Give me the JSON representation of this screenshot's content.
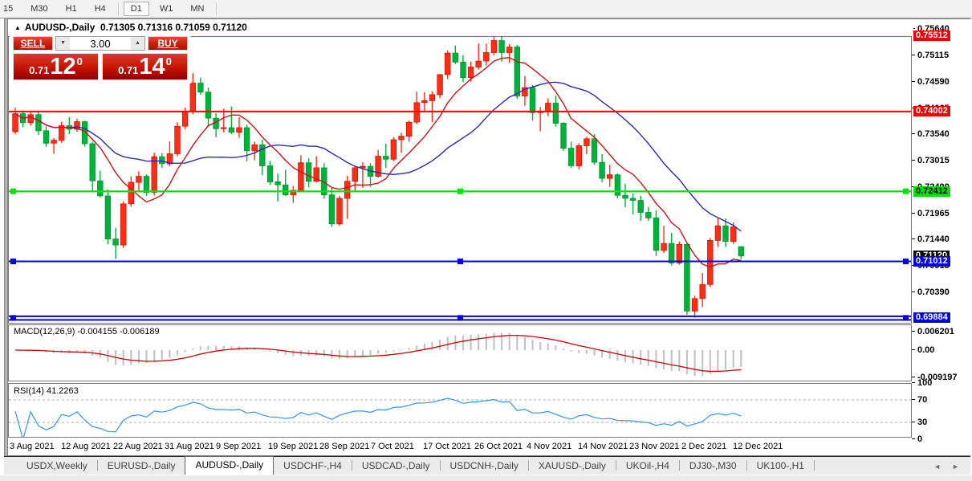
{
  "toolbar": {
    "timeframes": [
      {
        "label": "15",
        "active": false
      },
      {
        "label": "M30",
        "active": false
      },
      {
        "label": "H1",
        "active": false
      },
      {
        "label": "H4",
        "active": false
      },
      {
        "label": "D1",
        "active": true
      },
      {
        "label": "W1",
        "active": false
      },
      {
        "label": "MN",
        "active": false
      }
    ]
  },
  "chart": {
    "collapse_arrow": "▲",
    "symbol": "AUDUSD-,Daily",
    "ohlc": "0.71305 0.71316 0.71059 0.71120"
  },
  "trade": {
    "sell_label": "SELL",
    "buy_label": "BUY",
    "volume": "3.00",
    "bid": {
      "prefix": "0.71",
      "big": "12",
      "sup": "0"
    },
    "ask": {
      "prefix": "0.71",
      "big": "14",
      "sup": "0"
    }
  },
  "chart_data": {
    "type": "candlestick",
    "symbol": "AUDUSD",
    "timeframe": "Daily",
    "up_color": "#ff2e17",
    "up_border": "#e00f00",
    "down_color": "#00b23c",
    "down_border": "#009a2e",
    "ma_fast_color": "#cc1414",
    "ma_slow_color": "#2a2ab0",
    "price_axis_ticks": [
      "0.75640",
      "0.75115",
      "0.74590",
      "0.74065",
      "0.73540",
      "0.73015",
      "0.72490",
      "0.71965",
      "0.71440",
      "0.70915",
      "0.70390"
    ],
    "axis_badges": [
      {
        "value": "0.75512",
        "bg": "#f00000",
        "fg": "#ffffff"
      },
      {
        "value": "0.74002",
        "bg": "#f00000",
        "fg": "#ffffff"
      },
      {
        "value": "0.72412",
        "bg": "#00e000",
        "fg": "#000000"
      },
      {
        "value": "0.71120",
        "bg": "#000000",
        "fg": "#ffffff"
      },
      {
        "value": "0.71012",
        "bg": "#0000e0",
        "fg": "#ffffff"
      },
      {
        "value": "0.69884",
        "bg": "#0000e0",
        "fg": "#ffffff"
      }
    ],
    "levels": [
      {
        "price": 0.75512,
        "color": "#ff0000",
        "style": "solid",
        "handles": false
      },
      {
        "price": 0.74002,
        "color": "#ff0000",
        "style": "solid",
        "handles": false
      },
      {
        "price": 0.72412,
        "color": "#00e400",
        "style": "solid",
        "handles": true
      },
      {
        "price": 0.71012,
        "color": "#0000e0",
        "style": "solid",
        "handles": true
      },
      {
        "price": 0.69884,
        "color": "#0000e0",
        "style": "double",
        "handles": true
      }
    ],
    "x_labels": [
      "3 Aug 2021",
      "12 Aug 2021",
      "22 Aug 2021",
      "31 Aug 2021",
      "9 Sep 2021",
      "19 Sep 2021",
      "28 Sep 2021",
      "7 Oct 2021",
      "17 Oct 2021",
      "26 Oct 2021",
      "4 Nov 2021",
      "14 Nov 2021",
      "23 Nov 2021",
      "2 Dec 2021",
      "12 Dec 2021"
    ],
    "candles": [
      [
        0.736,
        0.7408,
        0.7355,
        0.7396
      ],
      [
        0.7396,
        0.7402,
        0.7369,
        0.7378
      ],
      [
        0.7378,
        0.7399,
        0.7372,
        0.7394
      ],
      [
        0.7394,
        0.74,
        0.7354,
        0.7362
      ],
      [
        0.7362,
        0.7371,
        0.733,
        0.7337
      ],
      [
        0.7337,
        0.7347,
        0.7316,
        0.7343
      ],
      [
        0.7343,
        0.738,
        0.7338,
        0.7372
      ],
      [
        0.7372,
        0.7389,
        0.7355,
        0.7365
      ],
      [
        0.7365,
        0.7386,
        0.736,
        0.738
      ],
      [
        0.738,
        0.7382,
        0.733,
        0.7336
      ],
      [
        0.7336,
        0.734,
        0.724,
        0.7262
      ],
      [
        0.7262,
        0.7282,
        0.7229,
        0.7232
      ],
      [
        0.7232,
        0.7245,
        0.7135,
        0.7146
      ],
      [
        0.7146,
        0.7168,
        0.7106,
        0.7134
      ],
      [
        0.7134,
        0.7221,
        0.7128,
        0.7216
      ],
      [
        0.7216,
        0.7271,
        0.721,
        0.7259
      ],
      [
        0.7259,
        0.7281,
        0.724,
        0.7271
      ],
      [
        0.7271,
        0.7275,
        0.7232,
        0.7239
      ],
      [
        0.7239,
        0.7318,
        0.7233,
        0.731
      ],
      [
        0.731,
        0.7317,
        0.7288,
        0.7296
      ],
      [
        0.7296,
        0.7341,
        0.7291,
        0.7316
      ],
      [
        0.7316,
        0.7379,
        0.7311,
        0.7371
      ],
      [
        0.7371,
        0.7408,
        0.7365,
        0.74
      ],
      [
        0.74,
        0.7477,
        0.7395,
        0.7457
      ],
      [
        0.7457,
        0.7468,
        0.7434,
        0.7439
      ],
      [
        0.7439,
        0.7448,
        0.737,
        0.7387
      ],
      [
        0.7387,
        0.7397,
        0.7349,
        0.7366
      ],
      [
        0.7366,
        0.7406,
        0.7359,
        0.7368
      ],
      [
        0.7368,
        0.741,
        0.7355,
        0.7359
      ],
      [
        0.7359,
        0.7389,
        0.7348,
        0.7368
      ],
      [
        0.7368,
        0.7374,
        0.7301,
        0.7322
      ],
      [
        0.7322,
        0.734,
        0.7303,
        0.7334
      ],
      [
        0.7334,
        0.7344,
        0.7273,
        0.7292
      ],
      [
        0.7292,
        0.7302,
        0.7254,
        0.726
      ],
      [
        0.726,
        0.7276,
        0.7221,
        0.7254
      ],
      [
        0.7254,
        0.7284,
        0.7232,
        0.7234
      ],
      [
        0.7234,
        0.7252,
        0.7218,
        0.7243
      ],
      [
        0.7243,
        0.7313,
        0.724,
        0.7298
      ],
      [
        0.7298,
        0.7307,
        0.7249,
        0.7261
      ],
      [
        0.7261,
        0.7311,
        0.7259,
        0.7288
      ],
      [
        0.7288,
        0.7297,
        0.7226,
        0.7234
      ],
      [
        0.7234,
        0.7247,
        0.717,
        0.7176
      ],
      [
        0.7176,
        0.7232,
        0.7172,
        0.7227
      ],
      [
        0.7227,
        0.7272,
        0.7186,
        0.7261
      ],
      [
        0.7261,
        0.729,
        0.724,
        0.7288
      ],
      [
        0.7288,
        0.7299,
        0.7248,
        0.7291
      ],
      [
        0.7291,
        0.7297,
        0.725,
        0.7271
      ],
      [
        0.7271,
        0.7324,
        0.7268,
        0.7311
      ],
      [
        0.7311,
        0.7336,
        0.7288,
        0.7305
      ],
      [
        0.7305,
        0.7349,
        0.7301,
        0.7344
      ],
      [
        0.7344,
        0.7358,
        0.7318,
        0.7351
      ],
      [
        0.7351,
        0.7382,
        0.734,
        0.7379
      ],
      [
        0.7379,
        0.744,
        0.7375,
        0.7418
      ],
      [
        0.7418,
        0.7439,
        0.74,
        0.7422
      ],
      [
        0.7422,
        0.7441,
        0.7379,
        0.7434
      ],
      [
        0.7434,
        0.7475,
        0.7427,
        0.7474
      ],
      [
        0.7474,
        0.7522,
        0.7465,
        0.7517
      ],
      [
        0.7517,
        0.7532,
        0.7495,
        0.7499
      ],
      [
        0.7499,
        0.7513,
        0.7459,
        0.7468
      ],
      [
        0.7468,
        0.75,
        0.746,
        0.7489
      ],
      [
        0.7489,
        0.7536,
        0.7484,
        0.7501
      ],
      [
        0.7501,
        0.7536,
        0.7492,
        0.7518
      ],
      [
        0.7518,
        0.7555,
        0.7512,
        0.7542
      ],
      [
        0.7542,
        0.7555,
        0.75,
        0.7518
      ],
      [
        0.7518,
        0.7535,
        0.7497,
        0.7529
      ],
      [
        0.7529,
        0.7533,
        0.7426,
        0.7431
      ],
      [
        0.7431,
        0.7471,
        0.7412,
        0.7448
      ],
      [
        0.7448,
        0.7453,
        0.7382,
        0.7398
      ],
      [
        0.7398,
        0.7409,
        0.7361,
        0.7401
      ],
      [
        0.7401,
        0.7426,
        0.7391,
        0.7417
      ],
      [
        0.7417,
        0.7432,
        0.737,
        0.7377
      ],
      [
        0.7377,
        0.7379,
        0.7322,
        0.7327
      ],
      [
        0.7327,
        0.734,
        0.7288,
        0.7292
      ],
      [
        0.7292,
        0.7337,
        0.7285,
        0.7332
      ],
      [
        0.7332,
        0.735,
        0.7315,
        0.7346
      ],
      [
        0.7346,
        0.7355,
        0.7294,
        0.7299
      ],
      [
        0.7299,
        0.7315,
        0.7259,
        0.7267
      ],
      [
        0.7267,
        0.7294,
        0.725,
        0.7274
      ],
      [
        0.7274,
        0.7277,
        0.7227,
        0.7233
      ],
      [
        0.7233,
        0.7256,
        0.7209,
        0.7227
      ],
      [
        0.7227,
        0.7237,
        0.7195,
        0.7223
      ],
      [
        0.7223,
        0.7232,
        0.7182,
        0.7199
      ],
      [
        0.7199,
        0.721,
        0.7182,
        0.7188
      ],
      [
        0.7188,
        0.7203,
        0.7112,
        0.7123
      ],
      [
        0.7123,
        0.7172,
        0.7118,
        0.7137
      ],
      [
        0.7137,
        0.7158,
        0.7093,
        0.7098
      ],
      [
        0.7098,
        0.7141,
        0.7095,
        0.7135
      ],
      [
        0.7135,
        0.7138,
        0.6995,
        0.7002
      ],
      [
        0.7002,
        0.7033,
        0.6989,
        0.7027
      ],
      [
        0.7027,
        0.7078,
        0.701,
        0.7055
      ],
      [
        0.7055,
        0.7148,
        0.705,
        0.7143
      ],
      [
        0.7143,
        0.7187,
        0.713,
        0.7172
      ],
      [
        0.7172,
        0.7187,
        0.713,
        0.7141
      ],
      [
        0.7141,
        0.7179,
        0.7136,
        0.717
      ],
      [
        0.71305,
        0.71316,
        0.71059,
        0.7112
      ]
    ],
    "indicators": {
      "macd": {
        "label": "MACD(12,26,9)",
        "values": "-0.004155 -0.006189",
        "axis": [
          "0.006201",
          "0.00",
          "-0.009197"
        ],
        "histogram_color": "#c4c4c4",
        "signal_color": "#cc0000"
      },
      "rsi": {
        "label": "RSI(14)",
        "value": "41.2263",
        "axis": [
          "100",
          "70",
          "30",
          "0"
        ],
        "levels": [
          70,
          30
        ],
        "line_color": "#3296f0"
      }
    }
  },
  "tabs": {
    "items": [
      {
        "label": "USDX,Weekly"
      },
      {
        "label": "EURUSD-,Daily"
      },
      {
        "label": "AUDUSD-,Daily"
      },
      {
        "label": "USDCHF-,H4"
      },
      {
        "label": "USDCAD-,Daily"
      },
      {
        "label": "USDCNH-,Daily"
      },
      {
        "label": "XAUUSD-,Daily"
      },
      {
        "label": "UKOil-,H4"
      },
      {
        "label": "DJ30-,M30"
      },
      {
        "label": "UK100-,H1"
      }
    ],
    "active_index": 2,
    "scroll_left_icon": "◄",
    "scroll_right_icon": "►"
  }
}
